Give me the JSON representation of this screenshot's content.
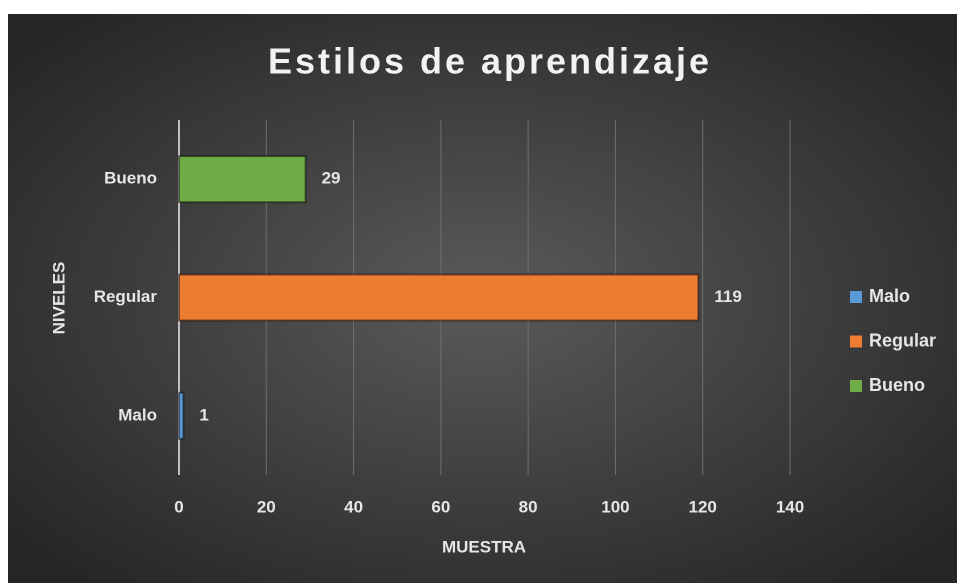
{
  "chart_data": {
    "type": "hbar",
    "title": "Estilos de aprendizaje",
    "x_label": "MUESTRA",
    "y_label": "NIVELES",
    "categories": [
      "Malo",
      "Regular",
      "Bueno"
    ],
    "values": [
      1,
      119,
      29
    ],
    "colors": [
      "#5b9bd5",
      "#ed7d31",
      "#70ad47"
    ],
    "xlim": [
      0,
      140
    ],
    "xticks": [
      0,
      20,
      40,
      60,
      80,
      100,
      120,
      140
    ],
    "grid": true,
    "legend": "right"
  }
}
